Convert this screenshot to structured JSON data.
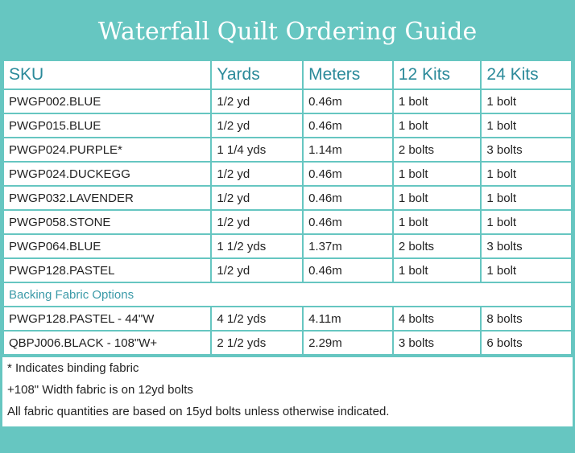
{
  "title": "Waterfall Quilt Ordering Guide",
  "headers": [
    "SKU",
    "Yards",
    "Meters",
    "12 Kits",
    "24 Kits"
  ],
  "rows": [
    [
      "PWGP002.BLUE",
      "1/2 yd",
      "0.46m",
      "1 bolt",
      "1 bolt"
    ],
    [
      "PWGP015.BLUE",
      "1/2 yd",
      "0.46m",
      "1 bolt",
      "1 bolt"
    ],
    [
      "PWGP024.PURPLE*",
      "1 1/4 yds",
      "1.14m",
      "2 bolts",
      "3 bolts"
    ],
    [
      "PWGP024.DUCKEGG",
      "1/2 yd",
      "0.46m",
      "1 bolt",
      "1 bolt"
    ],
    [
      "PWGP032.LAVENDER",
      "1/2 yd",
      "0.46m",
      "1 bolt",
      "1 bolt"
    ],
    [
      "PWGP058.STONE",
      "1/2 yd",
      "0.46m",
      "1 bolt",
      "1 bolt"
    ],
    [
      "PWGP064.BLUE",
      "1 1/2 yds",
      "1.37m",
      "2 bolts",
      "3 bolts"
    ],
    [
      "PWGP128.PASTEL",
      "1/2 yd",
      "0.46m",
      "1 bolt",
      "1 bolt"
    ]
  ],
  "backing_label": "Backing Fabric Options",
  "backing_rows": [
    [
      "PWGP128.PASTEL - 44\"W",
      "4 1/2 yds",
      "4.11m",
      "4 bolts",
      "8 bolts"
    ],
    [
      "QBPJ006.BLACK - 108\"W+",
      "2 1/2 yds",
      "2.29m",
      "3 bolts",
      "6 bolts"
    ]
  ],
  "notes": [
    "* Indicates binding fabric",
    "+108\" Width fabric is on 12yd bolts",
    "All fabric quantities are based on 15yd bolts unless otherwise indicated."
  ],
  "colors": {
    "accent": "#66c6c1",
    "heading_text": "#2b8a9a"
  }
}
